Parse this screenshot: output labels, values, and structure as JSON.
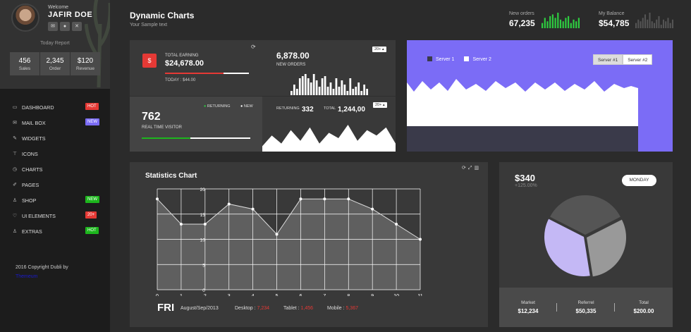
{
  "sidebar": {
    "welcome": "Welcome",
    "name": "JAFIR DOE",
    "today_report": "Today Report",
    "profile_icons": [
      "envelope-icon",
      "user-icon",
      "expand-icon"
    ],
    "stats": [
      {
        "value": "456",
        "label": "Sales"
      },
      {
        "value": "2,345",
        "label": "Order"
      },
      {
        "value": "$120",
        "label": "Revenue"
      }
    ],
    "nav": [
      {
        "label": "DASHBOARD",
        "icon": "monitor-icon",
        "glyph": "▭",
        "badge": "HOT",
        "badge_color": "#e53935"
      },
      {
        "label": "MAIL BOX",
        "icon": "mail-icon",
        "glyph": "✉",
        "badge": "NEW",
        "badge_color": "#7b6cf6"
      },
      {
        "label": "WIDGETS",
        "icon": "pen-icon",
        "glyph": "✎",
        "badge": "",
        "badge_color": ""
      },
      {
        "label": "ICONS",
        "icon": "brush-icon",
        "glyph": "⊤",
        "badge": "",
        "badge_color": ""
      },
      {
        "label": "CHARTS",
        "icon": "clock-icon",
        "glyph": "◷",
        "badge": "",
        "badge_color": ""
      },
      {
        "label": "PAGES",
        "icon": "pencil-icon",
        "glyph": "✐",
        "badge": "",
        "badge_color": ""
      },
      {
        "label": "SHOP",
        "icon": "flask-icon",
        "glyph": "♙",
        "badge": "NEW",
        "badge_color": "#1db61d"
      },
      {
        "label": "UI ELEMENTS",
        "icon": "heart-icon",
        "glyph": "♡",
        "badge": "20+",
        "badge_color": "#e53935"
      },
      {
        "label": "EXTRAS",
        "icon": "flask-icon",
        "glyph": "♙",
        "badge": "HOT",
        "badge_color": "#1db61d"
      }
    ],
    "copyright": "2016 Copyright Dubli by",
    "credit": "Themeum"
  },
  "header": {
    "title": "Dynamic Charts",
    "subtitle": "Your Sample text",
    "new_orders_label": "New orders",
    "new_orders_value": "67,235",
    "balance_label": "My Balance",
    "balance_value": "$54,785"
  },
  "tiles": {
    "earning_label": "TOTAL EARNING",
    "earning_value": "$24,678.00",
    "earning_today": "TODAY : $44.00",
    "earning_progress": 0.7,
    "orders_value": "6,878.00",
    "orders_label": "NEW ORDERS",
    "dropdown": "20+ ▴",
    "visitor_value": "762",
    "visitor_label": "REAL TIME VISITOR",
    "visitor_progress": 0.45,
    "returning_legend": "RETURNING",
    "new_legend": "NEW",
    "returning_label": "RETURNING",
    "returning_value": "332",
    "total_label": "TOTAL",
    "total_value": "1,244,00"
  },
  "server": {
    "legend1": "Server 1",
    "legend2": "Server 2",
    "btn1": "Server #1",
    "btn2": "Server #2",
    "color1": "#3a3a4a",
    "color2": "#ffffff",
    "bg": "#7b6cf6"
  },
  "statistics": {
    "title": "Statistics Chart",
    "day": "FRI",
    "date": "August/Sep/2013",
    "desktop_label": "Desktop :",
    "desktop_value": "7,234",
    "tablet_label": "Tablet :",
    "tablet_value": "1,456",
    "mobile_label": "Mobile :",
    "mobile_value": "5,367"
  },
  "pie_panel": {
    "value": "$340",
    "change": "+125.00%",
    "day_btn": "MONDAY",
    "market_label": "Market",
    "market_value": "$12,234",
    "referrel_label": "Referrel",
    "referrel_value": "$50,335",
    "total_label": "Total",
    "total_value": "$200.00"
  },
  "chart_data": [
    {
      "type": "area",
      "x": [
        0,
        1,
        2,
        3,
        4,
        5,
        6,
        7,
        8,
        9,
        10,
        11
      ],
      "values": [
        18,
        13,
        13,
        17,
        16,
        11,
        18,
        18,
        18,
        16,
        13,
        10
      ],
      "xlim": [
        0,
        11
      ],
      "ylim": [
        0,
        20
      ],
      "yticks": [
        0,
        5,
        10,
        15,
        20
      ],
      "xticks": [
        0,
        1,
        2,
        3,
        4,
        5,
        6,
        7,
        8,
        9,
        10,
        11
      ],
      "grid": true,
      "title": "Statistics Chart"
    },
    {
      "type": "pie",
      "values": [
        35,
        30,
        35
      ],
      "colors": [
        "#555555",
        "#999999",
        "#c4b8f5"
      ]
    },
    {
      "type": "bar",
      "values": [
        3,
        6,
        4,
        7,
        8,
        6,
        9,
        5,
        4,
        6,
        7,
        3,
        5,
        4,
        6
      ],
      "color": "#2ecc40"
    },
    {
      "type": "bar",
      "values": [
        3,
        5,
        4,
        6,
        8,
        5,
        9,
        4,
        3,
        5,
        7,
        2,
        5,
        4,
        6,
        3,
        5
      ],
      "color": "#555555"
    },
    {
      "type": "bar",
      "values": [
        2,
        5,
        3,
        8,
        9,
        10,
        8,
        6,
        10,
        7,
        4,
        8,
        9,
        4,
        6,
        3,
        8,
        4,
        7,
        5,
        2,
        8,
        3,
        4,
        6,
        2,
        5,
        3
      ],
      "color": "#ffffff"
    }
  ]
}
